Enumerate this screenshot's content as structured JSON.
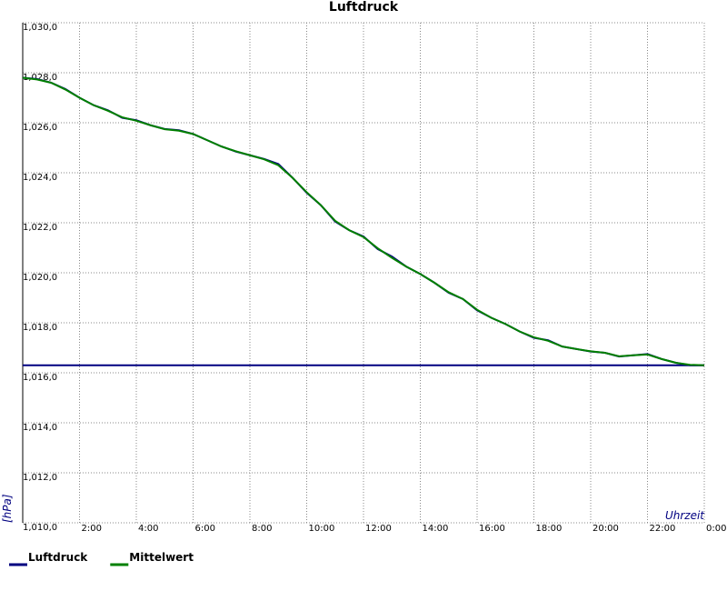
{
  "chart_data": {
    "type": "line",
    "title": "Luftdruck",
    "y_label": "[hPa]",
    "x_label": "Uhrzeit",
    "x": [
      0,
      0.5,
      1,
      1.5,
      2,
      2.5,
      3,
      3.5,
      4,
      4.5,
      5,
      5.5,
      6,
      6.5,
      7,
      7.5,
      8,
      8.5,
      9,
      9.5,
      10,
      10.5,
      11,
      11.5,
      12,
      12.5,
      13,
      13.5,
      14,
      14.5,
      15,
      15.5,
      16,
      16.5,
      17,
      17.5,
      18,
      18.5,
      19,
      19.5,
      20,
      20.5,
      21,
      21.5,
      22,
      22.5,
      23,
      23.5,
      24
    ],
    "series": [
      {
        "name": "Luftdruck",
        "color": "#000080",
        "values": [
          1027.8,
          1027.75,
          1027.6,
          1027.35,
          1027.0,
          1026.7,
          1026.5,
          1026.2,
          1026.1,
          1025.9,
          1025.75,
          1025.7,
          1025.55,
          1025.3,
          1025.05,
          1024.85,
          1024.7,
          1024.55,
          1024.35,
          1023.8,
          1023.2,
          1022.7,
          1022.05,
          1021.7,
          1021.45,
          1020.95,
          1020.65,
          1020.25,
          1019.95,
          1019.6,
          1019.2,
          1018.95,
          1018.5,
          1018.2,
          1017.95,
          1017.65,
          1017.4,
          1017.3,
          1017.05,
          1016.95,
          1016.85,
          1016.8,
          1016.65,
          1016.7,
          1016.75,
          1016.55,
          1016.4,
          1016.3,
          1016.3
        ]
      },
      {
        "name": "Mittelwert",
        "color": "#008000",
        "values": [
          1027.8,
          1027.73,
          1027.6,
          1027.33,
          1027.0,
          1026.7,
          1026.48,
          1026.22,
          1026.08,
          1025.9,
          1025.74,
          1025.68,
          1025.55,
          1025.3,
          1025.05,
          1024.86,
          1024.7,
          1024.54,
          1024.3,
          1023.8,
          1023.22,
          1022.7,
          1022.08,
          1021.7,
          1021.43,
          1020.98,
          1020.6,
          1020.25,
          1019.95,
          1019.6,
          1019.22,
          1018.95,
          1018.52,
          1018.2,
          1017.95,
          1017.65,
          1017.42,
          1017.28,
          1017.05,
          1016.95,
          1016.86,
          1016.8,
          1016.66,
          1016.7,
          1016.73,
          1016.55,
          1016.4,
          1016.32,
          1016.3
        ]
      }
    ],
    "reference_line": {
      "value": 1016.3,
      "color": "#000080"
    },
    "xlim": [
      0,
      24
    ],
    "xticks": [
      {
        "value": 2,
        "label": "2:00"
      },
      {
        "value": 4,
        "label": "4:00"
      },
      {
        "value": 6,
        "label": "6:00"
      },
      {
        "value": 8,
        "label": "8:00"
      },
      {
        "value": 10,
        "label": "10:00"
      },
      {
        "value": 12,
        "label": "12:00"
      },
      {
        "value": 14,
        "label": "14:00"
      },
      {
        "value": 16,
        "label": "16:00"
      },
      {
        "value": 18,
        "label": "18:00"
      },
      {
        "value": 20,
        "label": "20:00"
      },
      {
        "value": 22,
        "label": "22:00"
      },
      {
        "value": 24,
        "label": "0:00"
      }
    ],
    "ylim": [
      1010,
      1030
    ],
    "yticks": [
      {
        "value": 1010,
        "label": "1,010,0"
      },
      {
        "value": 1012,
        "label": "1,012,0"
      },
      {
        "value": 1014,
        "label": "1,014,0"
      },
      {
        "value": 1016,
        "label": "1,016,0"
      },
      {
        "value": 1018,
        "label": "1,018,0"
      },
      {
        "value": 1020,
        "label": "1,020,0"
      },
      {
        "value": 1022,
        "label": "1,022,0"
      },
      {
        "value": 1024,
        "label": "1,024,0"
      },
      {
        "value": 1026,
        "label": "1,026,0"
      },
      {
        "value": 1028,
        "label": "1,028,0"
      },
      {
        "value": 1030,
        "label": "1,030,0"
      }
    ],
    "grid": true,
    "legend": "bottom-left"
  }
}
